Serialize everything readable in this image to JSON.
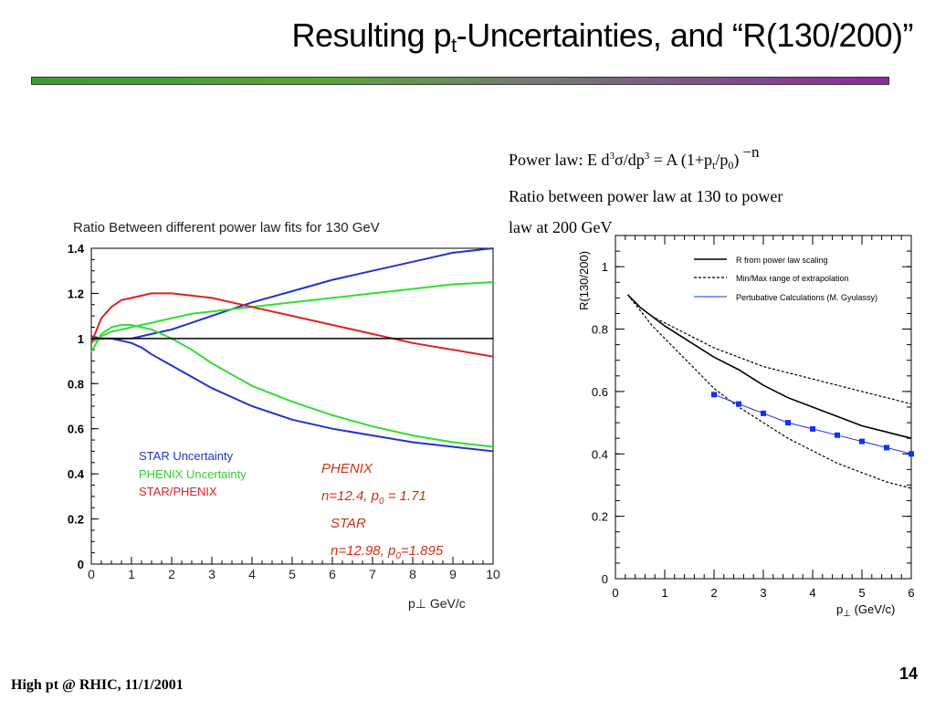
{
  "slide": {
    "title_pre": "Resulting p",
    "title_sub": "t",
    "title_post": "-Uncertainties, and “R(130/200)”",
    "footer": "High pt @ RHIC, 11/1/2001",
    "page": "14"
  },
  "equation": {
    "line1_a": "Power law: E d",
    "sup3": "3",
    "line1_b": "σ/dp",
    "line1_c": " = A (1+p",
    "sub_t": "t",
    "line1_d": "/p",
    "sub_0": "0",
    "line1_e": ")",
    "exponent": "−n",
    "line2": "Ratio between power law at 130 to power",
    "line3": "law at 200 GeV"
  },
  "colors": {
    "blue": "#2233cc",
    "green": "#33dd33",
    "red": "#dd2222",
    "black": "#000000",
    "marker": "#1133ee",
    "title_gradient": [
      "#3c9c2c",
      "#8a2a9c"
    ]
  },
  "chart_data": [
    {
      "type": "line",
      "title": "Ratio Between different power law fits for 130 GeV",
      "xlabel": "p⊥ GeV/c",
      "ylabel": "",
      "xlim": [
        0,
        10
      ],
      "ylim": [
        0,
        1.4
      ],
      "xticks": [
        "0",
        "1",
        "2",
        "3",
        "4",
        "5",
        "6",
        "7",
        "8",
        "9",
        "10"
      ],
      "yticks": [
        "0",
        "0.2",
        "0.4",
        "0.6",
        "0.8",
        "1",
        "1.2",
        "1.4"
      ],
      "x": [
        0,
        0.25,
        0.5,
        0.75,
        1,
        1.25,
        1.5,
        2,
        2.5,
        3,
        3.5,
        4,
        5,
        6,
        7,
        8,
        9,
        10
      ],
      "series": [
        {
          "name": "STAR Uncertainty",
          "color": "blue",
          "values": [
            0.99,
            1.0,
            1.0,
            1.0,
            1.0,
            1.01,
            1.02,
            1.04,
            1.07,
            1.1,
            1.13,
            1.16,
            1.21,
            1.26,
            1.3,
            1.34,
            1.38,
            1.42
          ]
        },
        {
          "name": "STAR Uncertainty",
          "color": "blue",
          "values": [
            1.01,
            1.0,
            1.0,
            0.99,
            0.98,
            0.96,
            0.93,
            0.88,
            0.83,
            0.78,
            0.74,
            0.7,
            0.64,
            0.6,
            0.57,
            0.54,
            0.52,
            0.5
          ]
        },
        {
          "name": "PHENIX Uncertainty",
          "color": "green",
          "values": [
            0.98,
            1.01,
            1.03,
            1.04,
            1.05,
            1.06,
            1.07,
            1.09,
            1.11,
            1.12,
            1.13,
            1.14,
            1.16,
            1.18,
            1.2,
            1.22,
            1.24,
            1.25
          ]
        },
        {
          "name": "PHENIX Uncertainty",
          "color": "green",
          "values": [
            0.94,
            1.02,
            1.05,
            1.06,
            1.06,
            1.05,
            1.04,
            1.0,
            0.95,
            0.89,
            0.84,
            0.79,
            0.72,
            0.66,
            0.61,
            0.57,
            0.54,
            0.52
          ]
        },
        {
          "name": "STAR/PHENIX",
          "color": "red",
          "values": [
            0.98,
            1.09,
            1.14,
            1.17,
            1.18,
            1.19,
            1.2,
            1.2,
            1.19,
            1.18,
            1.16,
            1.14,
            1.1,
            1.06,
            1.02,
            0.98,
            0.95,
            0.92
          ]
        },
        {
          "name": "",
          "color": "black",
          "values": [
            1,
            1,
            1,
            1,
            1,
            1,
            1,
            1,
            1,
            1,
            1,
            1,
            1,
            1,
            1,
            1,
            1,
            1
          ]
        }
      ],
      "annotations": [
        {
          "text": "PHENIX",
          "color": "red"
        },
        {
          "text": "n=12.4, p0 = 1.71",
          "color": "red"
        },
        {
          "text": "STAR",
          "color": "red"
        },
        {
          "text": "n=12.98, p0=1.895",
          "color": "red"
        }
      ],
      "legend": "bottom-left"
    },
    {
      "type": "line",
      "title": "",
      "xlabel": "p⊥ (GeV/c)",
      "ylabel": "R(130/200)",
      "xlim": [
        0,
        6
      ],
      "ylim": [
        0,
        1.1
      ],
      "xticks": [
        "0",
        "1",
        "2",
        "3",
        "4",
        "5",
        "6"
      ],
      "yticks": [
        "0",
        "0.2",
        "0.4",
        "0.6",
        "0.8",
        "1"
      ],
      "x": [
        0.25,
        0.5,
        0.75,
        1,
        1.5,
        2,
        2.5,
        3,
        3.5,
        4,
        4.5,
        5,
        5.5,
        6
      ],
      "series": [
        {
          "name": "R from power law scaling",
          "style": "solid",
          "values": [
            0.91,
            0.87,
            0.84,
            0.81,
            0.76,
            0.71,
            0.67,
            0.62,
            0.58,
            0.55,
            0.52,
            0.49,
            0.47,
            0.45
          ]
        },
        {
          "name": "Min/Max range of extrapolation",
          "style": "dashed",
          "values": [
            0.91,
            0.87,
            0.84,
            0.82,
            0.78,
            0.74,
            0.71,
            0.68,
            0.66,
            0.64,
            0.62,
            0.6,
            0.58,
            0.56
          ]
        },
        {
          "name": "",
          "style": "dashed",
          "values": [
            0.91,
            0.86,
            0.81,
            0.77,
            0.69,
            0.61,
            0.55,
            0.5,
            0.45,
            0.41,
            0.37,
            0.34,
            0.31,
            0.29
          ]
        }
      ],
      "points": {
        "name": "Pertubative Calculations (M. Gyulassy)",
        "x": [
          2,
          2.5,
          3,
          3.5,
          4,
          4.5,
          5,
          5.5,
          6
        ],
        "y": [
          0.59,
          0.56,
          0.53,
          0.5,
          0.48,
          0.46,
          0.44,
          0.42,
          0.4
        ]
      },
      "legend": "top-right"
    }
  ]
}
